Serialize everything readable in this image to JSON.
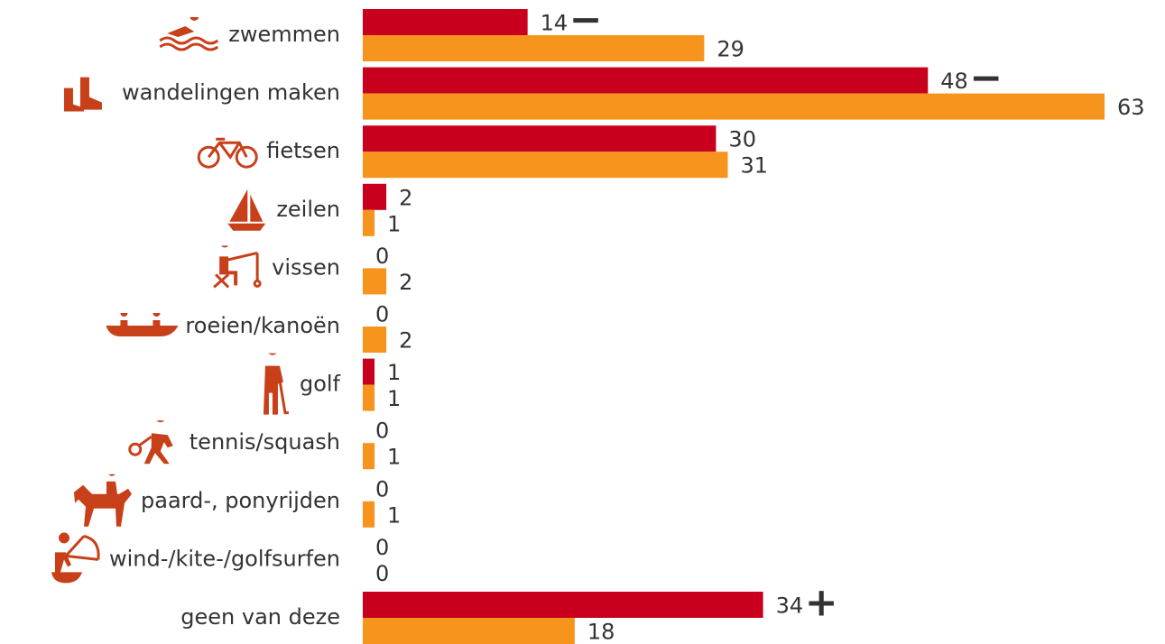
{
  "chart_data": {
    "type": "bar",
    "orientation": "horizontal",
    "categories": [
      "zwemmen",
      "wandelingen maken",
      "fietsen",
      "zeilen",
      "vissen",
      "roeien/kanoën",
      "golf",
      "tennis/squash",
      "paard-, ponyrijden",
      "wind-/kite-/golfsurfen",
      "geen van deze"
    ],
    "series": [
      {
        "color": "#c8001e",
        "values": [
          14,
          48,
          30,
          2,
          0,
          0,
          1,
          0,
          0,
          0,
          34
        ],
        "markers": [
          "−",
          "−",
          null,
          null,
          null,
          null,
          null,
          null,
          null,
          null,
          "+"
        ]
      },
      {
        "color": "#f7941d",
        "values": [
          29,
          63,
          31,
          1,
          2,
          2,
          1,
          1,
          1,
          0,
          18
        ]
      }
    ],
    "xlim": [
      0,
      63
    ]
  }
}
